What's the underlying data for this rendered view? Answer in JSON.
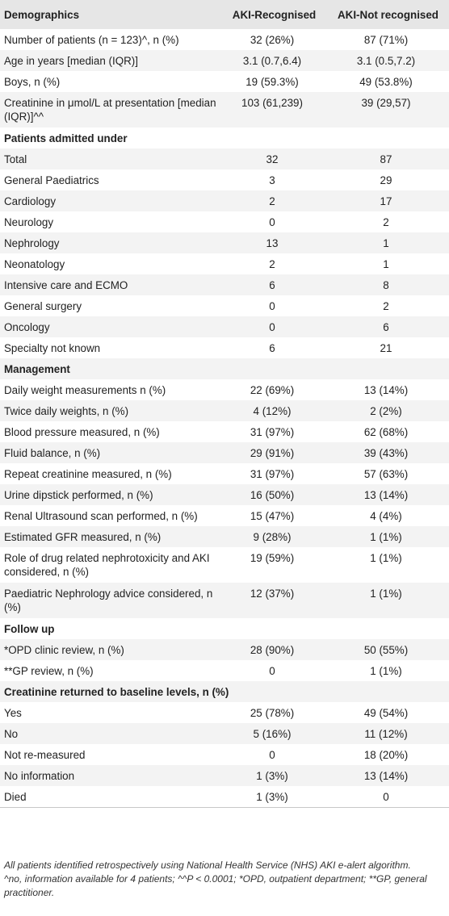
{
  "table": {
    "headers": [
      "Demographics",
      "AKI-Recognised",
      "AKI-Not recognised"
    ],
    "rows": [
      {
        "label": "Number of patients (n = 123)^, n (%)",
        "a": "32 (26%)",
        "b": "87 (71%)"
      },
      {
        "label": "Age in years [median (IQR)]",
        "a": "3.1 (0.7,6.4)",
        "b": "3.1 (0.5,7.2)"
      },
      {
        "label": "Boys, n (%)",
        "a": "19 (59.3%)",
        "b": "49 (53.8%)"
      },
      {
        "label": "Creatinine in μmol/L at presentation [median (IQR)]^^",
        "a": "103 (61,239)",
        "b": "39 (29,57)"
      },
      {
        "section": "Patients admitted under"
      },
      {
        "label": "Total",
        "a": "32",
        "b": "87"
      },
      {
        "label": "General Paediatrics",
        "a": "3",
        "b": "29"
      },
      {
        "label": "Cardiology",
        "a": "2",
        "b": "17"
      },
      {
        "label": "Neurology",
        "a": "0",
        "b": "2"
      },
      {
        "label": "Nephrology",
        "a": "13",
        "b": "1"
      },
      {
        "label": "Neonatology",
        "a": "2",
        "b": "1"
      },
      {
        "label": "Intensive care and ECMO",
        "a": "6",
        "b": "8"
      },
      {
        "label": "General surgery",
        "a": "0",
        "b": "2"
      },
      {
        "label": "Oncology",
        "a": "0",
        "b": "6"
      },
      {
        "label": "Specialty not known",
        "a": "6",
        "b": "21"
      },
      {
        "section": "Management"
      },
      {
        "label": "Daily weight measurements n (%)",
        "a": "22 (69%)",
        "b": "13 (14%)"
      },
      {
        "label": "Twice daily weights, n (%)",
        "a": "4 (12%)",
        "b": "2 (2%)"
      },
      {
        "label": "Blood pressure measured, n (%)",
        "a": "31 (97%)",
        "b": "62 (68%)"
      },
      {
        "label": "Fluid balance, n (%)",
        "a": "29 (91%)",
        "b": "39 (43%)"
      },
      {
        "label": "Repeat creatinine measured, n (%)",
        "a": "31 (97%)",
        "b": "57 (63%)"
      },
      {
        "label": "Urine dipstick performed, n (%)",
        "a": "16 (50%)",
        "b": "13 (14%)"
      },
      {
        "label": "Renal Ultrasound scan performed, n (%)",
        "a": "15 (47%)",
        "b": "4 (4%)"
      },
      {
        "label": "Estimated GFR measured, n (%)",
        "a": "9 (28%)",
        "b": "1 (1%)"
      },
      {
        "label": "Role of drug related nephrotoxicity and AKI considered, n (%)",
        "a": "19 (59%)",
        "b": "1 (1%)"
      },
      {
        "label": "Paediatric Nephrology advice considered, n (%)",
        "a": "12 (37%)",
        "b": "1 (1%)"
      },
      {
        "section": "Follow up"
      },
      {
        "label": "*OPD clinic review, n (%)",
        "a": "28 (90%)",
        "b": "50 (55%)"
      },
      {
        "label": "**GP review, n (%)",
        "a": "0",
        "b": "1 (1%)"
      },
      {
        "section": "Creatinine returned to baseline levels, n (%)"
      },
      {
        "label": "Yes",
        "a": "25 (78%)",
        "b": "49 (54%)"
      },
      {
        "label": "No",
        "a": "5 (16%)",
        "b": "11 (12%)"
      },
      {
        "label": "Not re-measured",
        "a": "0",
        "b": "18 (20%)"
      },
      {
        "label": "No information",
        "a": "1 (3%)",
        "b": "13 (14%)"
      },
      {
        "label": "Died",
        "a": "1 (3%)",
        "b": "0"
      }
    ]
  },
  "footnotes": [
    "All patients identified retrospectively using National Health Service (NHS) AKI e-alert algorithm.",
    "^no, information available for 4 patients; ^^P < 0.0001; *OPD, outpatient department; **GP, general practitioner."
  ]
}
